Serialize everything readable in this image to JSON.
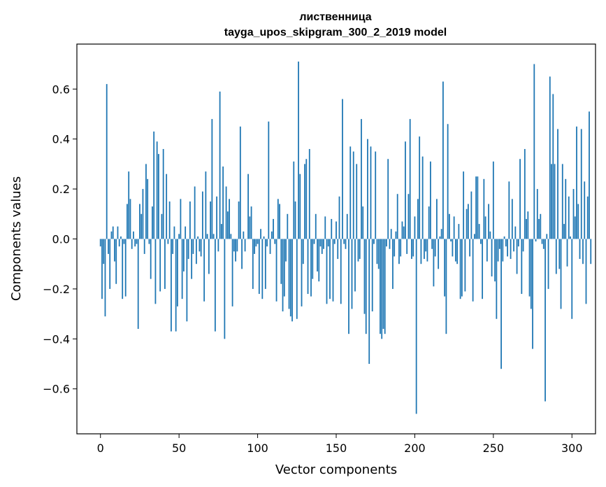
{
  "chart_data": {
    "type": "bar",
    "title": "лиственница",
    "subtitle": "tayga_upos_skipgram_300_2_2019 model",
    "xlabel": "Vector components",
    "ylabel": "Components values",
    "xlim": [
      -15,
      315
    ],
    "ylim": [
      -0.78,
      0.78
    ],
    "x_ticks": [
      0,
      50,
      100,
      150,
      200,
      250,
      300
    ],
    "x_tick_labels": [
      "0",
      "50",
      "100",
      "150",
      "200",
      "250",
      "300"
    ],
    "y_ticks": [
      -0.6,
      -0.4,
      -0.2,
      0.0,
      0.2,
      0.4,
      0.6
    ],
    "y_tick_labels": [
      "−0.6",
      "−0.4",
      "−0.2",
      "0.0",
      "0.2",
      "0.4",
      "0.6"
    ],
    "color": "#1f77b4",
    "values": [
      -0.03,
      -0.24,
      -0.1,
      -0.31,
      0.62,
      -0.06,
      -0.2,
      0.03,
      0.05,
      -0.09,
      -0.18,
      0.05,
      -0.03,
      0.01,
      -0.24,
      -0.02,
      -0.23,
      0.14,
      0.27,
      0.16,
      -0.04,
      0.03,
      -0.03,
      -0.02,
      -0.36,
      0.14,
      0.1,
      0.2,
      -0.06,
      0.3,
      0.24,
      -0.02,
      -0.16,
      0.13,
      0.43,
      -0.26,
      0.39,
      0.34,
      -0.21,
      0.1,
      0.36,
      -0.2,
      0.26,
      -0.02,
      0.15,
      -0.37,
      -0.06,
      0.05,
      -0.37,
      -0.27,
      0.02,
      0.16,
      -0.24,
      -0.13,
      0.05,
      -0.33,
      -0.08,
      0.15,
      -0.16,
      -0.06,
      0.21,
      -0.1,
      0.01,
      -0.05,
      -0.07,
      0.19,
      -0.25,
      0.27,
      0.02,
      -0.14,
      0.15,
      0.48,
      0.02,
      -0.37,
      0.17,
      -0.05,
      0.59,
      0.06,
      0.29,
      -0.4,
      0.21,
      0.11,
      0.16,
      0.02,
      -0.27,
      -0.05,
      -0.09,
      -0.05,
      0.15,
      0.45,
      -0.12,
      0.03,
      -0.05,
      0.0,
      0.26,
      0.09,
      0.13,
      -0.2,
      -0.06,
      -0.03,
      -0.02,
      -0.22,
      0.04,
      -0.24,
      0.01,
      -0.2,
      -0.03,
      0.47,
      -0.06,
      0.03,
      0.08,
      -0.02,
      -0.25,
      0.16,
      0.14,
      -0.18,
      -0.29,
      -0.23,
      -0.09,
      0.1,
      -0.28,
      -0.31,
      -0.33,
      0.31,
      0.15,
      -0.32,
      0.71,
      0.26,
      -0.27,
      -0.1,
      0.3,
      0.32,
      -0.22,
      0.36,
      -0.23,
      -0.16,
      -0.02,
      0.1,
      -0.13,
      -0.17,
      -0.03,
      -0.06,
      -0.04,
      0.09,
      -0.26,
      -0.03,
      -0.24,
      0.08,
      -0.25,
      -0.02,
      0.07,
      -0.08,
      0.17,
      -0.26,
      0.56,
      -0.02,
      -0.04,
      0.1,
      -0.38,
      0.37,
      -0.28,
      0.35,
      -0.21,
      0.3,
      -0.09,
      -0.08,
      0.48,
      0.13,
      -0.3,
      -0.38,
      0.4,
      -0.5,
      0.37,
      -0.29,
      -0.02,
      0.35,
      -0.1,
      -0.12,
      -0.38,
      -0.4,
      -0.36,
      -0.38,
      -0.03,
      0.32,
      -0.04,
      0.04,
      -0.2,
      -0.07,
      0.03,
      0.18,
      -0.1,
      -0.07,
      0.07,
      0.05,
      0.39,
      -0.06,
      0.18,
      0.48,
      -0.08,
      -0.07,
      0.09,
      -0.7,
      0.16,
      0.41,
      -0.1,
      0.33,
      -0.08,
      -0.05,
      -0.09,
      0.13,
      0.31,
      -0.04,
      -0.19,
      -0.07,
      0.16,
      -0.12,
      0.01,
      0.04,
      0.63,
      -0.23,
      -0.38,
      0.46,
      0.1,
      -0.01,
      -0.07,
      0.09,
      -0.09,
      -0.1,
      0.06,
      -0.24,
      -0.23,
      0.27,
      -0.21,
      0.12,
      0.14,
      -0.07,
      0.19,
      -0.25,
      0.02,
      0.25,
      0.25,
      0.06,
      -0.02,
      -0.24,
      0.24,
      0.09,
      -0.09,
      0.14,
      0.03,
      -0.15,
      0.31,
      -0.17,
      -0.32,
      -0.09,
      -0.04,
      -0.52,
      -0.09,
      0.01,
      -0.03,
      -0.07,
      0.23,
      -0.08,
      0.16,
      -0.05,
      0.05,
      -0.14,
      -0.03,
      0.32,
      -0.22,
      -0.05,
      0.36,
      0.08,
      0.11,
      -0.23,
      -0.28,
      -0.44,
      0.7,
      -0.01,
      0.2,
      0.08,
      0.1,
      -0.02,
      -0.04,
      -0.65,
      0.02,
      -0.2,
      0.65,
      0.3,
      0.58,
      0.3,
      -0.14,
      0.44,
      -0.12,
      -0.28,
      0.3,
      0.06,
      0.24,
      -0.11,
      0.17,
      0.01,
      -0.32,
      0.2,
      0.09,
      0.45,
      0.14,
      -0.08,
      0.44,
      -0.1,
      0.23,
      -0.26,
      0.17,
      0.51,
      -0.1
    ]
  }
}
